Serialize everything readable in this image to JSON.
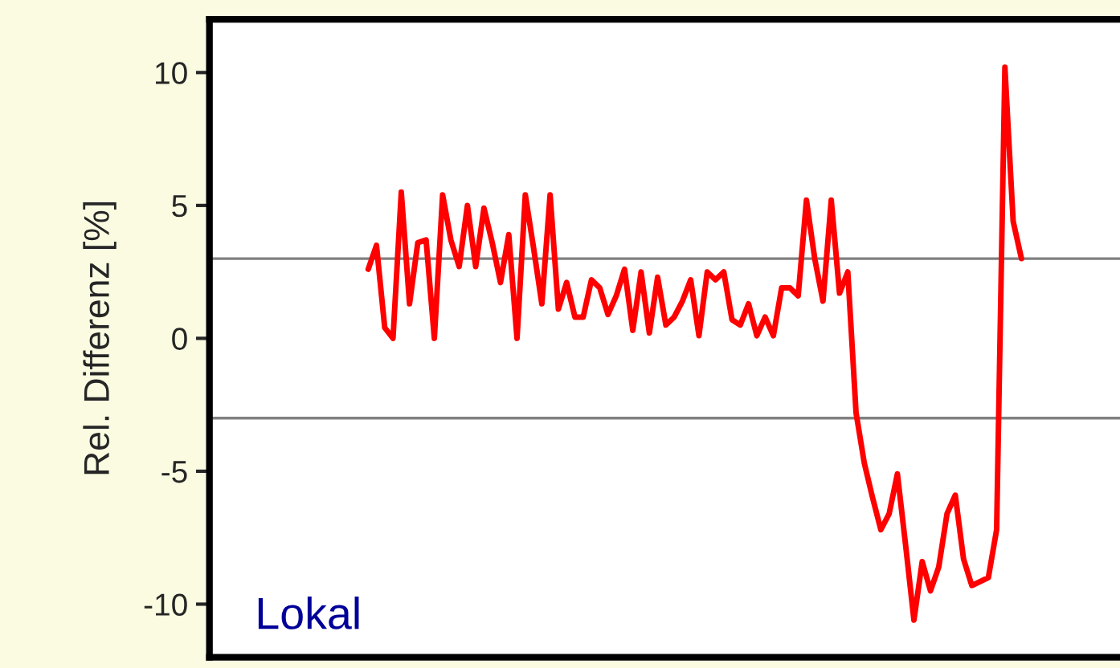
{
  "chart_data": {
    "type": "line",
    "ylabel": "Rel. Differenz [%]",
    "categories": [
      null,
      null,
      null,
      null,
      null,
      null,
      null,
      null,
      null,
      null,
      null,
      null,
      null,
      null,
      null,
      null,
      null,
      null,
      null,
      null,
      null,
      null,
      null,
      null,
      null,
      null,
      null,
      null,
      null,
      null,
      null,
      null,
      null,
      null,
      null,
      null,
      null,
      null,
      null,
      null,
      null,
      null,
      null,
      null,
      null,
      null,
      null,
      null,
      null,
      null,
      null,
      null,
      null,
      null,
      null,
      null,
      null,
      null,
      null,
      null,
      null,
      null,
      null,
      null,
      null,
      null,
      null,
      null,
      null,
      null,
      null,
      null,
      null,
      null,
      null,
      null,
      null,
      null,
      null,
      null,
      null,
      null
    ],
    "series": [
      {
        "color": "#ff0000",
        "values": [
          null,
          2.6,
          3.5,
          0.4,
          0,
          5.5,
          1.3,
          3.6,
          3.7,
          0,
          5.4,
          3.7,
          2.7,
          5,
          2.7,
          4.9,
          3.6,
          2.1,
          3.9,
          0,
          5.4,
          3.4,
          1.3,
          5.4,
          1.1,
          2.1,
          0.8,
          0.8,
          2.2,
          1.9,
          0.9,
          1.6,
          2.6,
          0.3,
          2.5,
          0.2,
          2.3,
          0.5,
          0.8,
          1.4,
          2.2,
          0.1,
          2.5,
          2.2,
          2.5,
          0.7,
          0.5,
          1.3,
          0.1,
          0.8,
          0.1,
          1.9,
          1.9,
          1.6,
          5.2,
          3,
          1.4,
          5.2,
          1.7,
          2.5,
          -2.8,
          -4.7,
          -6,
          -7.2,
          -6.6,
          -5.1,
          -7.8,
          -10.6,
          -8.4,
          -9.5,
          -8.6,
          -6.6,
          -5.9,
          -8.3,
          -9.3,
          null,
          -9,
          -7.2,
          10.2,
          4.4,
          3,
          null
        ]
      }
    ],
    "ylim": [
      -12,
      12
    ],
    "yticks": [
      -10,
      -5,
      0,
      5,
      10
    ],
    "ref_lines": [
      {
        "axis": "y",
        "value": 3,
        "color": "#808080"
      },
      {
        "axis": "y",
        "value": -3,
        "color": "#808080"
      }
    ],
    "annotations": [
      "Lokal"
    ],
    "grid": false,
    "legend": false,
    "tick_labels": "y"
  }
}
